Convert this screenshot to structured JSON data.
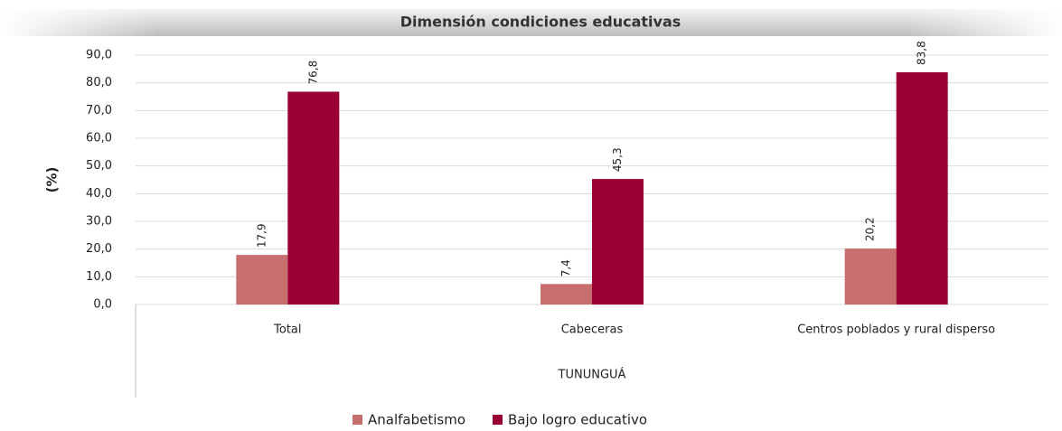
{
  "chart_data": {
    "type": "bar",
    "title": "Dimensión condiciones educativas",
    "y_label": "(%)",
    "x_label": "TUNUNGUÁ",
    "categories": [
      "Total",
      "Cabeceras",
      "Centros poblados y rural disperso"
    ],
    "series": [
      {
        "name": "Analfabetismo",
        "color": "#c76f6f",
        "values": [
          17.9,
          7.4,
          20.2
        ],
        "value_labels": [
          "17,9",
          "7,4",
          "20,2"
        ]
      },
      {
        "name": "Bajo logro educativo",
        "color": "#9a0034",
        "values": [
          76.8,
          45.3,
          83.8
        ],
        "value_labels": [
          "76,8",
          "45,3",
          "83,8"
        ]
      }
    ],
    "ylim": [
      0,
      90
    ],
    "yticks": [
      {
        "value": 0,
        "label": "0,0"
      },
      {
        "value": 10,
        "label": "10,0"
      },
      {
        "value": 20,
        "label": "20,0"
      },
      {
        "value": 30,
        "label": "30,0"
      },
      {
        "value": 40,
        "label": "40,0"
      },
      {
        "value": 50,
        "label": "50,0"
      },
      {
        "value": 60,
        "label": "60,0"
      },
      {
        "value": 70,
        "label": "70,0"
      },
      {
        "value": 80,
        "label": "80,0"
      },
      {
        "value": 90,
        "label": "90,0"
      }
    ],
    "grid": true,
    "legend": "bottom"
  }
}
